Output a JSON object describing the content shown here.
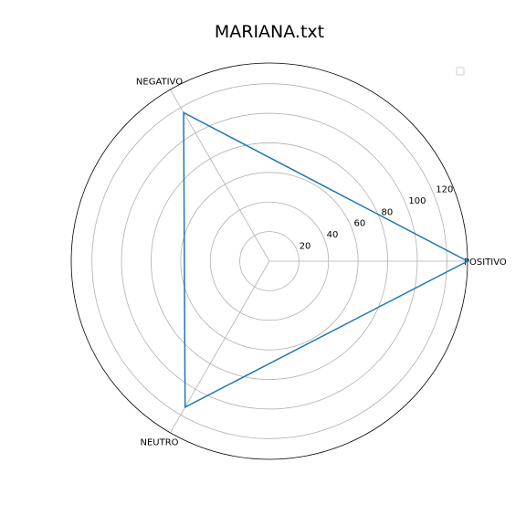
{
  "chart_data": {
    "type": "radar",
    "title": "MARIANA.txt",
    "categories": [
      "POSITIVO",
      "NEGATIVO",
      "NEUTRO"
    ],
    "series": [
      {
        "values": [
          134,
          116,
          114
        ],
        "color": "#1f77b4"
      }
    ],
    "rlim": [
      0,
      134
    ],
    "rticks": [
      20,
      40,
      60,
      80,
      100,
      120
    ],
    "grid": true,
    "legend": "top-right",
    "colors": {
      "series": "#1f77b4",
      "grid": "#b0b0b0",
      "frame": "#000000"
    }
  }
}
